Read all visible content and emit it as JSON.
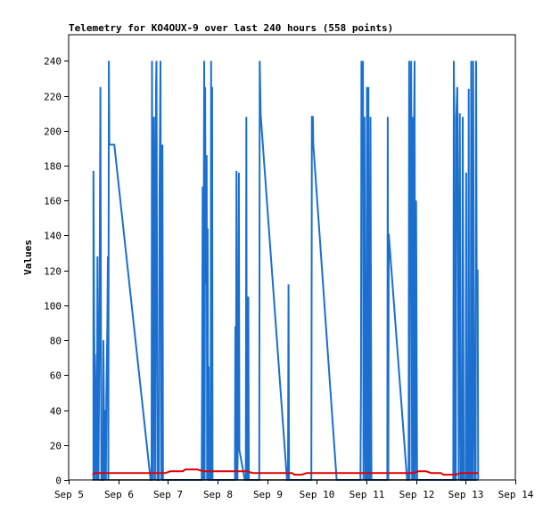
{
  "chart_data": {
    "type": "line",
    "title": "Telemetry for KO4OUX-9 over last 240 hours (558 points)",
    "xlabel": "",
    "ylabel": "Values",
    "x_ticks": [
      "Sep 5",
      "Sep 6",
      "Sep 7",
      "Sep 8",
      "Sep 9",
      "Sep 10",
      "Sep 11",
      "Sep 12",
      "Sep 13",
      "Sep 14"
    ],
    "xlim": [
      "Sep 5",
      "Sep 14"
    ],
    "y_ticks": [
      0,
      20,
      40,
      60,
      80,
      100,
      120,
      140,
      160,
      180,
      200,
      220,
      240
    ],
    "ylim": [
      0,
      255
    ],
    "grid": false,
    "legend": "none",
    "x_unit": "days",
    "series": [
      {
        "color": "#1a6fcf",
        "points": [
          [
            5.5,
            0
          ],
          [
            5.5,
            177
          ],
          [
            5.53,
            0
          ],
          [
            5.53,
            72
          ],
          [
            5.57,
            0
          ],
          [
            5.58,
            128
          ],
          [
            5.6,
            0
          ],
          [
            5.62,
            80
          ],
          [
            5.64,
            225
          ],
          [
            5.66,
            0
          ],
          [
            5.69,
            0
          ],
          [
            5.7,
            80
          ],
          [
            5.72,
            0
          ],
          [
            5.74,
            40
          ],
          [
            5.75,
            0
          ],
          [
            5.76,
            48
          ],
          [
            5.78,
            88
          ],
          [
            5.79,
            128
          ],
          [
            5.8,
            0
          ],
          [
            5.81,
            240
          ],
          [
            5.82,
            192
          ],
          [
            5.92,
            192
          ],
          [
            6.65,
            0
          ],
          [
            6.67,
            0
          ],
          [
            6.68,
            240
          ],
          [
            6.7,
            0
          ],
          [
            6.72,
            208
          ],
          [
            6.74,
            0
          ],
          [
            6.76,
            225
          ],
          [
            6.77,
            240
          ],
          [
            6.79,
            0
          ],
          [
            6.82,
            0
          ],
          [
            6.83,
            160
          ],
          [
            6.85,
            240
          ],
          [
            6.87,
            0
          ],
          [
            6.89,
            192
          ],
          [
            6.9,
            0
          ],
          [
            7.68,
            0
          ],
          [
            7.69,
            56
          ],
          [
            7.7,
            168
          ],
          [
            7.71,
            0
          ],
          [
            7.72,
            120
          ],
          [
            7.73,
            240
          ],
          [
            7.74,
            0
          ],
          [
            7.75,
            225
          ],
          [
            7.76,
            112
          ],
          [
            7.78,
            186
          ],
          [
            7.79,
            0
          ],
          [
            7.8,
            144
          ],
          [
            7.81,
            0
          ],
          [
            7.82,
            65
          ],
          [
            7.83,
            0
          ],
          [
            7.86,
            0
          ],
          [
            7.87,
            240
          ],
          [
            7.88,
            0
          ],
          [
            7.89,
            225
          ],
          [
            7.9,
            0
          ],
          [
            8.35,
            0
          ],
          [
            8.36,
            88
          ],
          [
            8.37,
            0
          ],
          [
            8.38,
            177
          ],
          [
            8.4,
            0
          ],
          [
            8.42,
            64
          ],
          [
            8.43,
            176
          ],
          [
            8.44,
            17
          ],
          [
            8.55,
            0
          ],
          [
            8.57,
            0
          ],
          [
            8.58,
            208
          ],
          [
            8.59,
            0
          ],
          [
            8.61,
            0
          ],
          [
            8.62,
            105
          ],
          [
            8.63,
            0
          ],
          [
            8.84,
            0
          ],
          [
            8.85,
            240
          ],
          [
            8.87,
            209
          ],
          [
            9.4,
            0
          ],
          [
            9.42,
            0
          ],
          [
            9.43,
            112
          ],
          [
            9.44,
            0
          ],
          [
            9.89,
            0
          ],
          [
            9.9,
            208
          ],
          [
            9.92,
            208
          ],
          [
            9.93,
            192
          ],
          [
            10.4,
            0
          ],
          [
            10.88,
            0
          ],
          [
            10.89,
            56
          ],
          [
            10.9,
            240
          ],
          [
            10.91,
            208
          ],
          [
            10.93,
            240
          ],
          [
            10.94,
            0
          ],
          [
            10.96,
            208
          ],
          [
            10.98,
            0
          ],
          [
            11.0,
            0
          ],
          [
            11.01,
            225
          ],
          [
            11.03,
            0
          ],
          [
            11.04,
            225
          ],
          [
            11.05,
            0
          ],
          [
            11.07,
            0
          ],
          [
            11.08,
            208
          ],
          [
            11.1,
            0
          ],
          [
            11.42,
            0
          ],
          [
            11.43,
            208
          ],
          [
            11.44,
            0
          ],
          [
            11.45,
            141
          ],
          [
            11.82,
            0
          ],
          [
            11.85,
            0
          ],
          [
            11.86,
            240
          ],
          [
            11.87,
            0
          ],
          [
            11.88,
            192
          ],
          [
            11.89,
            160
          ],
          [
            11.9,
            240
          ],
          [
            11.91,
            120
          ],
          [
            11.92,
            0
          ],
          [
            11.94,
            208
          ],
          [
            11.95,
            0
          ],
          [
            11.96,
            200
          ],
          [
            11.97,
            240
          ],
          [
            11.98,
            0
          ],
          [
            12.0,
            160
          ],
          [
            12.02,
            0
          ],
          [
            12.75,
            0
          ],
          [
            12.76,
            240
          ],
          [
            12.77,
            208
          ],
          [
            12.78,
            0
          ],
          [
            12.8,
            0
          ],
          [
            12.81,
            208
          ],
          [
            12.83,
            225
          ],
          [
            12.85,
            104
          ],
          [
            12.86,
            0
          ],
          [
            12.88,
            210
          ],
          [
            12.9,
            0
          ],
          [
            12.93,
            0
          ],
          [
            12.94,
            208
          ],
          [
            12.96,
            0
          ],
          [
            13.0,
            0
          ],
          [
            13.01,
            176
          ],
          [
            13.02,
            0
          ],
          [
            13.05,
            0
          ],
          [
            13.06,
            224
          ],
          [
            13.07,
            0
          ],
          [
            13.1,
            0
          ],
          [
            13.11,
            240
          ],
          [
            13.12,
            0
          ],
          [
            13.14,
            0
          ],
          [
            13.15,
            240
          ],
          [
            13.16,
            120
          ],
          [
            13.18,
            0
          ],
          [
            13.2,
            0
          ],
          [
            13.21,
            240
          ],
          [
            13.22,
            120
          ],
          [
            13.24,
            120
          ],
          [
            13.25,
            0
          ]
        ]
      },
      {
        "color": "#dd0000",
        "points": [
          [
            5.48,
            3
          ],
          [
            5.52,
            4
          ],
          [
            6.8,
            4
          ],
          [
            6.95,
            4
          ],
          [
            7.05,
            5
          ],
          [
            7.3,
            5
          ],
          [
            7.35,
            6
          ],
          [
            7.6,
            6
          ],
          [
            7.7,
            5
          ],
          [
            8.6,
            5
          ],
          [
            8.7,
            4
          ],
          [
            9.5,
            4
          ],
          [
            9.55,
            3
          ],
          [
            9.7,
            3
          ],
          [
            9.8,
            4
          ],
          [
            11.95,
            4
          ],
          [
            12.05,
            5
          ],
          [
            12.2,
            5
          ],
          [
            12.3,
            4
          ],
          [
            12.5,
            4
          ],
          [
            12.55,
            3
          ],
          [
            12.8,
            3
          ],
          [
            12.9,
            4
          ],
          [
            13.25,
            4
          ]
        ]
      },
      {
        "color": "#000000",
        "points": [
          [
            5.48,
            0
          ],
          [
            13.25,
            0
          ]
        ]
      }
    ]
  }
}
